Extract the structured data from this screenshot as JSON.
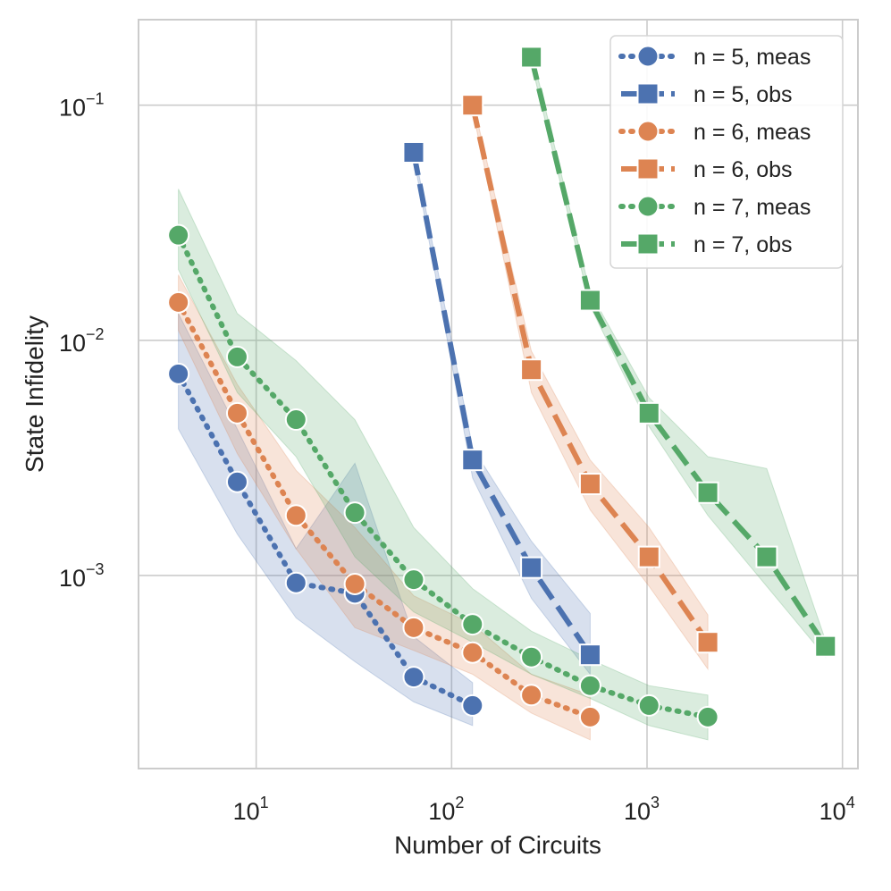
{
  "chart_data": {
    "type": "line",
    "xscale": "log",
    "yscale": "log",
    "title": "",
    "xlabel": "Number of Circuits",
    "ylabel": "State Infidelity",
    "xlim": [
      2.5,
      12000
    ],
    "ylim": [
      0.000151,
      0.231
    ],
    "grid": true,
    "legend_position": "top-right",
    "x_ticks": [
      {
        "value": 10,
        "base": "10",
        "exp": "1"
      },
      {
        "value": 100,
        "base": "10",
        "exp": "2"
      },
      {
        "value": 1000,
        "base": "10",
        "exp": "3"
      },
      {
        "value": 10000,
        "base": "10",
        "exp": "4"
      }
    ],
    "y_ticks": [
      {
        "value": 0.001,
        "base": "10",
        "exp": "−3"
      },
      {
        "value": 0.01,
        "base": "10",
        "exp": "−2"
      },
      {
        "value": 0.1,
        "base": "10",
        "exp": "−1"
      }
    ],
    "series": [
      {
        "name": "n = 5, meas",
        "color": "#4c72b0",
        "marker": "circle",
        "line": "dotted",
        "x": [
          4,
          8,
          16,
          32,
          64,
          128
        ],
        "y": [
          0.0072,
          0.0025,
          0.00093,
          0.00084,
          0.00037,
          0.00028
        ],
        "lower": [
          0.0042,
          0.0015,
          0.00066,
          0.00043,
          0.00029,
          0.00023
        ],
        "upper": [
          0.013,
          0.0042,
          0.0013,
          0.003,
          0.00055,
          0.00035
        ]
      },
      {
        "name": "n = 5, obs",
        "color": "#4c72b0",
        "marker": "square",
        "line": "dashed",
        "x": [
          64,
          128,
          256,
          512
        ],
        "y": [
          0.063,
          0.0031,
          0.00108,
          0.00046
        ],
        "lower": [
          0.06,
          0.0026,
          0.0008,
          0.00038
        ],
        "upper": [
          0.066,
          0.0035,
          0.0014,
          0.00069
        ]
      },
      {
        "name": "n = 6, meas",
        "color": "#dd8452",
        "marker": "circle",
        "line": "dotted",
        "x": [
          4,
          8,
          16,
          32,
          64,
          128,
          256,
          512
        ],
        "y": [
          0.0145,
          0.0049,
          0.0018,
          0.00092,
          0.0006,
          0.00047,
          0.00031,
          0.00025
        ],
        "lower": [
          0.011,
          0.0033,
          0.0013,
          0.0006,
          0.00048,
          0.00038,
          0.00026,
          0.0002
        ],
        "upper": [
          0.019,
          0.0065,
          0.0028,
          0.0016,
          0.00082,
          0.00062,
          0.00038,
          0.00031
        ]
      },
      {
        "name": "n = 6, obs",
        "color": "#dd8452",
        "marker": "square",
        "line": "dashed",
        "x": [
          128,
          256,
          512,
          1024,
          2048
        ],
        "y": [
          0.1,
          0.0075,
          0.00245,
          0.0012,
          0.00052
        ],
        "lower": [
          0.095,
          0.006,
          0.0019,
          0.0009,
          0.0004
        ],
        "upper": [
          0.105,
          0.009,
          0.0031,
          0.0016,
          0.00068
        ]
      },
      {
        "name": "n = 7, meas",
        "color": "#55a868",
        "marker": "circle",
        "line": "dotted",
        "x": [
          4,
          8,
          16,
          32,
          64,
          128,
          256,
          512,
          1024,
          2048
        ],
        "y": [
          0.028,
          0.0085,
          0.0046,
          0.00185,
          0.00096,
          0.00062,
          0.00045,
          0.00034,
          0.00028,
          0.00025
        ],
        "lower": [
          0.02,
          0.006,
          0.0032,
          0.0012,
          0.0007,
          0.00052,
          0.00038,
          0.0003,
          0.00023,
          0.0002
        ],
        "upper": [
          0.044,
          0.013,
          0.0082,
          0.0046,
          0.0016,
          0.00088,
          0.00058,
          0.00044,
          0.00034,
          0.00031
        ]
      },
      {
        "name": "n = 7, obs",
        "color": "#55a868",
        "marker": "square",
        "line": "dashed",
        "x": [
          256,
          512,
          1024,
          2048,
          4096,
          8192
        ],
        "y": [
          0.16,
          0.0148,
          0.0049,
          0.00225,
          0.0012,
          0.0005
        ],
        "lower": [
          0.15,
          0.014,
          0.0043,
          0.0018,
          0.0009,
          0.00045
        ],
        "upper": [
          0.17,
          0.016,
          0.0057,
          0.0032,
          0.00285,
          0.00053
        ]
      }
    ]
  }
}
